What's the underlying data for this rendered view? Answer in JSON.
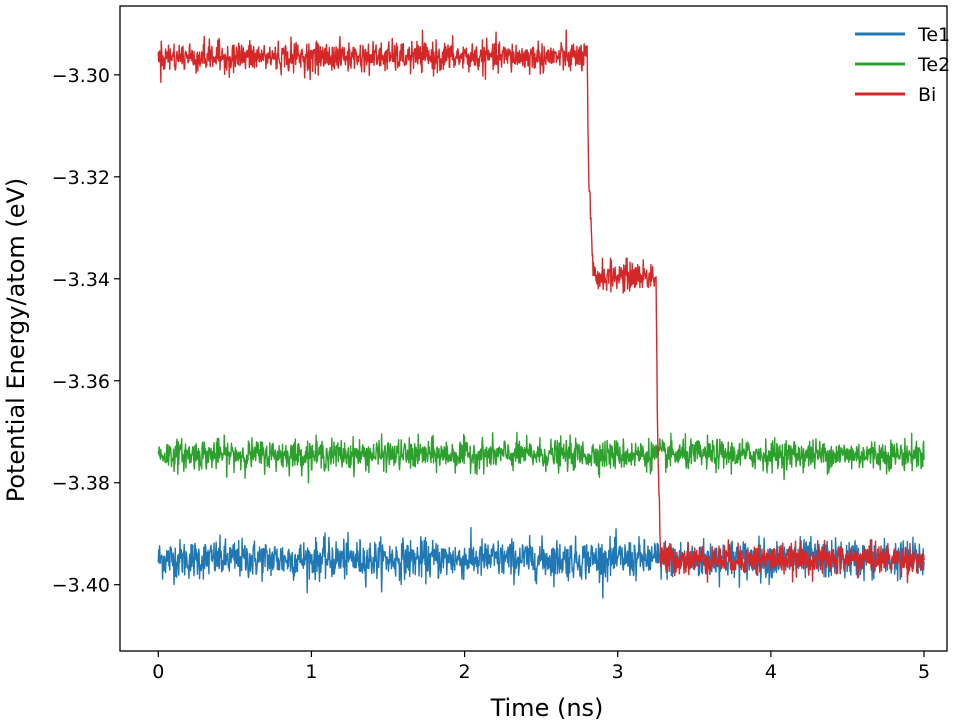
{
  "chart_data": {
    "type": "line",
    "title": "",
    "xlabel": "Time (ns)",
    "ylabel": "Potential Energy/atom (eV)",
    "xlim": [
      -0.25,
      5.15
    ],
    "ylim": [
      -3.413,
      -3.2865
    ],
    "xticks": [
      0,
      1,
      2,
      3,
      4,
      5
    ],
    "xtick_labels": [
      "0",
      "1",
      "2",
      "3",
      "4",
      "5"
    ],
    "yticks": [
      -3.3,
      -3.32,
      -3.34,
      -3.36,
      -3.38,
      -3.4
    ],
    "ytick_labels": [
      "−3.30",
      "−3.32",
      "−3.34",
      "−3.36",
      "−3.38",
      "−3.40"
    ],
    "grid": false,
    "legend_position": "top-right",
    "series": [
      {
        "name": "Te1",
        "color": "#1f77b4",
        "x": [
          0,
          5
        ],
        "y": [
          -3.395,
          -3.395
        ],
        "noise_amplitude": 0.0045
      },
      {
        "name": "Te2",
        "color": "#2ca02c",
        "x": [
          0,
          5
        ],
        "y": [
          -3.3745,
          -3.3745
        ],
        "noise_amplitude": 0.0035
      },
      {
        "name": "Bi",
        "color": "#d62728",
        "x": [
          0,
          2.8,
          2.81,
          2.84,
          3.25,
          3.26,
          3.28,
          5
        ],
        "y": [
          -3.2965,
          -3.2965,
          -3.32,
          -3.3395,
          -3.3395,
          -3.37,
          -3.395,
          -3.395
        ],
        "noise_amplitude": 0.0035
      }
    ]
  }
}
